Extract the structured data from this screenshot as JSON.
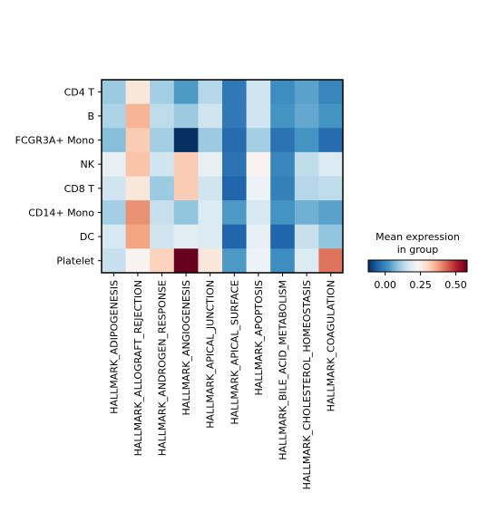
{
  "chart_data": {
    "type": "heatmap",
    "title": "",
    "xlabel": "",
    "ylabel": "",
    "rows": [
      "CD4 T",
      "B",
      "FCGR3A+ Mono",
      "NK",
      "CD8 T",
      "CD14+ Mono",
      "DC",
      "Platelet"
    ],
    "columns": [
      "HALLMARK_ADIPOGENESIS",
      "HALLMARK_ALLOGRAFT_REJECTION",
      "HALLMARK_ANDROGEN_RESPONSE",
      "HALLMARK_ANGIOGENESIS",
      "HALLMARK_APICAL_JUNCTION",
      "HALLMARK_APICAL_SURFACE",
      "HALLMARK_APOPTOSIS",
      "HALLMARK_BILE_ACID_METABOLISM",
      "HALLMARK_CHOLESTEROL_HOMEOSTASIS",
      "HALLMARK_COAGULATION"
    ],
    "values": [
      [
        0.1,
        0.27,
        0.11,
        0.03,
        0.13,
        -0.02,
        0.16,
        0.01,
        0.04,
        0.0
      ],
      [
        0.12,
        0.35,
        0.14,
        0.1,
        0.16,
        -0.02,
        0.16,
        0.02,
        0.05,
        0.02
      ],
      [
        0.08,
        0.32,
        0.11,
        -0.12,
        0.1,
        -0.04,
        0.11,
        -0.03,
        0.02,
        -0.04
      ],
      [
        0.2,
        0.33,
        0.16,
        0.32,
        0.2,
        -0.03,
        0.24,
        0.0,
        0.14,
        0.18
      ],
      [
        0.16,
        0.27,
        0.1,
        0.32,
        0.16,
        -0.05,
        0.21,
        -0.01,
        0.13,
        0.14
      ],
      [
        0.11,
        0.39,
        0.15,
        0.09,
        0.18,
        0.03,
        0.17,
        0.02,
        0.06,
        0.04
      ],
      [
        0.17,
        0.37,
        0.16,
        0.19,
        0.18,
        -0.05,
        0.2,
        -0.05,
        0.15,
        0.09
      ],
      [
        0.15,
        0.24,
        0.31,
        0.6,
        0.27,
        0.03,
        0.21,
        0.01,
        0.18,
        0.42
      ]
    ],
    "colorscale": "RdBu_r",
    "zlim": [
      -0.12,
      0.58
    ],
    "colorbar": {
      "title": "Mean expression\nin group",
      "ticks": [
        0.0,
        0.25,
        0.5
      ],
      "tick_labels": [
        "0.00",
        "0.25",
        "0.50"
      ]
    },
    "legend_placement": "lower-right",
    "grid": false
  }
}
